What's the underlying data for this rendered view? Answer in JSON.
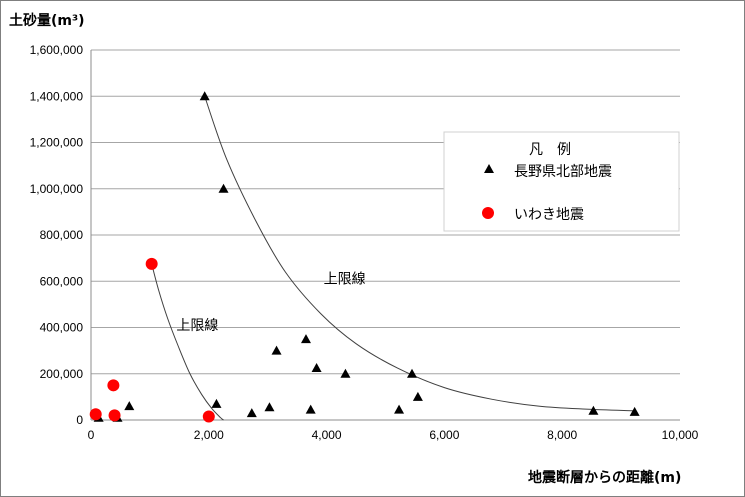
{
  "chart_data": {
    "type": "scatter",
    "ylabel": "土砂量(m³)",
    "xlabel": "地震断層からの距離(m)",
    "xlim": [
      0,
      10000
    ],
    "ylim": [
      0,
      1600000
    ],
    "x_ticks": [
      "0",
      "2,000",
      "4,000",
      "6,000",
      "8,000",
      "10,000"
    ],
    "y_ticks": [
      "0",
      "200,000",
      "400,000",
      "600,000",
      "800,000",
      "1,000,000",
      "1,200,000",
      "1,400,000",
      "1,600,000"
    ],
    "grid": "horizontal",
    "legend_title": "凡　例",
    "legend_position": "right",
    "series": [
      {
        "name": "長野県北部地震",
        "marker": "triangle",
        "color": "#000000",
        "points": [
          {
            "x": 1930,
            "y": 1400000
          },
          {
            "x": 2250,
            "y": 1000000
          },
          {
            "x": 3650,
            "y": 350000
          },
          {
            "x": 3150,
            "y": 300000
          },
          {
            "x": 3830,
            "y": 225000
          },
          {
            "x": 4320,
            "y": 200000
          },
          {
            "x": 5450,
            "y": 200000
          },
          {
            "x": 5550,
            "y": 100000
          },
          {
            "x": 2130,
            "y": 70000
          },
          {
            "x": 650,
            "y": 60000
          },
          {
            "x": 3030,
            "y": 55000
          },
          {
            "x": 3730,
            "y": 45000
          },
          {
            "x": 5230,
            "y": 45000
          },
          {
            "x": 8530,
            "y": 40000
          },
          {
            "x": 9230,
            "y": 35000
          },
          {
            "x": 2730,
            "y": 30000
          },
          {
            "x": 130,
            "y": 10000
          },
          {
            "x": 450,
            "y": 10000
          }
        ]
      },
      {
        "name": "いわき地震",
        "marker": "circle",
        "color": "#ff0000",
        "points": [
          {
            "x": 1030,
            "y": 675000
          },
          {
            "x": 380,
            "y": 150000
          },
          {
            "x": 80,
            "y": 25000
          },
          {
            "x": 400,
            "y": 20000
          },
          {
            "x": 2000,
            "y": 15000
          }
        ]
      }
    ],
    "curves": [
      {
        "label": "上限線",
        "points": [
          [
            1930,
            1400000
          ],
          [
            2300,
            1130000
          ],
          [
            2800,
            860000
          ],
          [
            3300,
            640000
          ],
          [
            3900,
            460000
          ],
          [
            4500,
            330000
          ],
          [
            5200,
            225000
          ],
          [
            6000,
            140000
          ],
          [
            6800,
            90000
          ],
          [
            7600,
            60000
          ],
          [
            8400,
            47000
          ],
          [
            9200,
            40000
          ]
        ],
        "label_at": [
          3950,
          590000
        ]
      },
      {
        "label": "上限線",
        "points": [
          [
            1030,
            675000
          ],
          [
            1150,
            560000
          ],
          [
            1300,
            440000
          ],
          [
            1480,
            320000
          ],
          [
            1680,
            200000
          ],
          [
            1880,
            110000
          ],
          [
            2050,
            50000
          ],
          [
            2200,
            10000
          ],
          [
            2250,
            0
          ]
        ],
        "label_at": [
          1450,
          390000
        ]
      }
    ]
  }
}
